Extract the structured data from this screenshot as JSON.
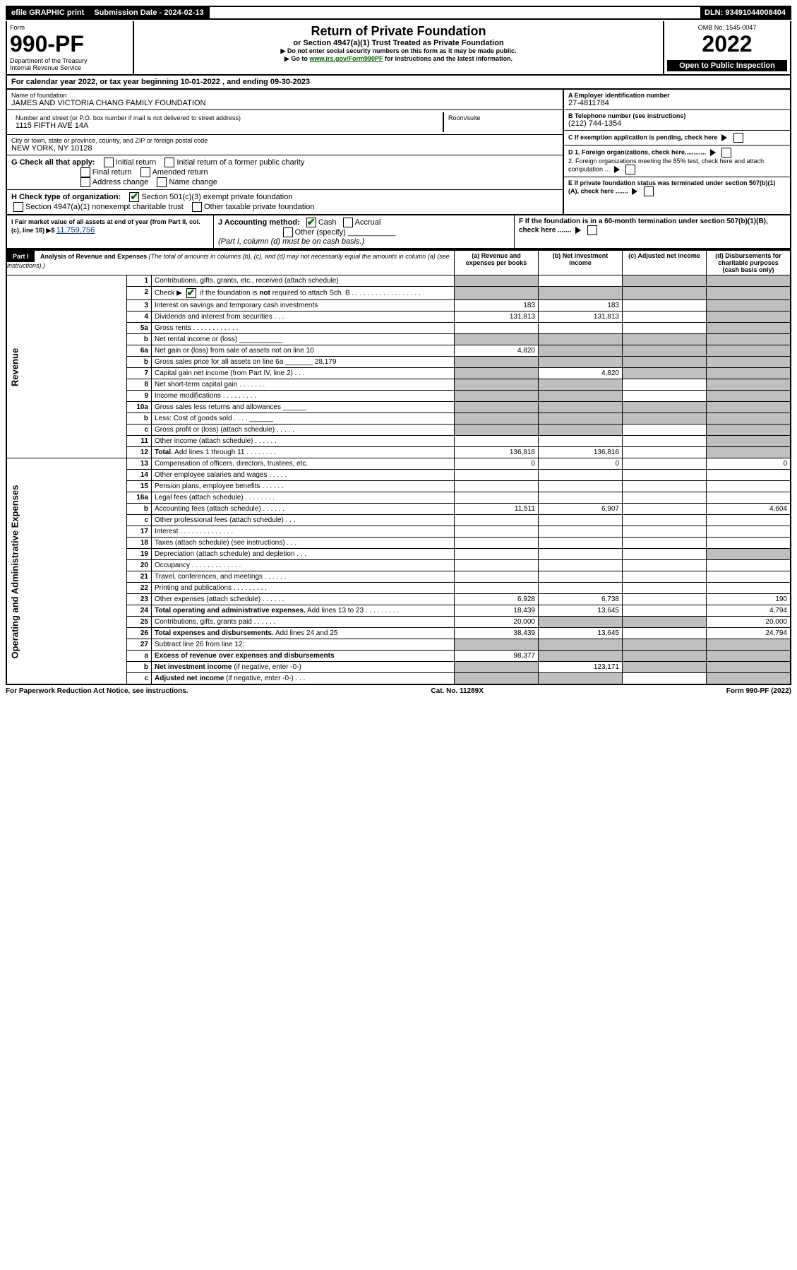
{
  "topbar": {
    "efile": "efile GRAPHIC print",
    "submission_label": "Submission Date - 2024-02-13",
    "dln": "DLN: 93491044008404"
  },
  "header": {
    "form_word": "Form",
    "form_num": "990-PF",
    "dept": "Department of the Treasury",
    "irs": "Internal Revenue Service",
    "title": "Return of Private Foundation",
    "subtitle": "or Section 4947(a)(1) Trust Treated as Private Foundation",
    "note1": "▶ Do not enter social security numbers on this form as it may be made public.",
    "note2_pre": "▶ Go to ",
    "note2_link": "www.irs.gov/Form990PF",
    "note2_post": " for instructions and the latest information.",
    "omb": "OMB No. 1545-0047",
    "year": "2022",
    "inspection": "Open to Public Inspection"
  },
  "calyear": {
    "text_pre": "For calendar year 2022, or tax year beginning ",
    "begin": "10-01-2022",
    "mid": " , and ending ",
    "end": "09-30-2023"
  },
  "foundation": {
    "name_label": "Name of foundation",
    "name": "JAMES AND VICTORIA CHANG FAMILY FOUNDATION",
    "addr_label": "Number and street (or P.O. box number if mail is not delivered to street address)",
    "addr": "1115 FIFTH AVE 14A",
    "room_label": "Room/suite",
    "city_label": "City or town, state or province, country, and ZIP or foreign postal code",
    "city": "NEW YORK, NY  10128"
  },
  "rightinfo": {
    "a_label": "A Employer identification number",
    "a_val": "27-4811784",
    "b_label": "B Telephone number (see instructions)",
    "b_val": "(212) 744-1354",
    "c_label": "C If exemption application is pending, check here",
    "d1": "D 1. Foreign organizations, check here............",
    "d2": "2. Foreign organizations meeting the 85% test, check here and attach computation ...",
    "e": "E  If private foundation status was terminated under section 507(b)(1)(A), check here .......",
    "f": "F  If the foundation is in a 60-month termination under section 507(b)(1)(B), check here .......",
    "i_label": "I Fair market value of all assets at end of year (from Part II, col. (c), line 16) ▶$ ",
    "i_val": "11,759,756",
    "j_label": "J Accounting method:",
    "j_cash": "Cash",
    "j_accrual": "Accrual",
    "j_other": "Other (specify)",
    "j_note": "(Part I, column (d) must be on cash basis.)"
  },
  "checks": {
    "g_label": "G Check all that apply:",
    "g1": "Initial return",
    "g2": "Initial return of a former public charity",
    "g3": "Final return",
    "g4": "Amended return",
    "g5": "Address change",
    "g6": "Name change",
    "h_label": "H Check type of organization:",
    "h1": "Section 501(c)(3) exempt private foundation",
    "h2": "Section 4947(a)(1) nonexempt charitable trust",
    "h3": "Other taxable private foundation"
  },
  "part1": {
    "label": "Part I",
    "title": "Analysis of Revenue and Expenses",
    "title_note": "(The total of amounts in columns (b), (c), and (d) may not necessarily equal the amounts in column (a) (see instructions).)",
    "col_a": "(a) Revenue and expenses per books",
    "col_b": "(b) Net investment income",
    "col_c": "(c) Adjusted net income",
    "col_d": "(d) Disbursements for charitable purposes (cash basis only)"
  },
  "sections": {
    "revenue": "Revenue",
    "expenses": "Operating and Administrative Expenses"
  },
  "rows": [
    {
      "n": "1",
      "d": "Contributions, gifts, grants, etc., received (attach schedule)",
      "a": "",
      "b": "",
      "c": "",
      "dd": "",
      "ga": true,
      "gc": true,
      "gd": true
    },
    {
      "n": "2",
      "d": "Check ▶ ☑ if the foundation is <b>not</b> required to attach Sch. B   . . . . . . . . . . . . . . . . . .",
      "a": "",
      "b": "",
      "c": "",
      "dd": "",
      "ga": true,
      "gb": true,
      "gc": true,
      "gd": true,
      "check": true
    },
    {
      "n": "3",
      "d": "Interest on savings and temporary cash investments",
      "a": "183",
      "b": "183",
      "c": "",
      "dd": "",
      "gd": true
    },
    {
      "n": "4",
      "d": "Dividends and interest from securities   .  .  .",
      "a": "131,813",
      "b": "131,813",
      "c": "",
      "dd": "",
      "gd": true
    },
    {
      "n": "5a",
      "d": "Gross rents   .  .  .  .  .  .  .  .  .  .  .  .",
      "a": "",
      "b": "",
      "c": "",
      "dd": "",
      "gd": true
    },
    {
      "n": "b",
      "d": "Net rental income or (loss) ___________",
      "a": "",
      "b": "",
      "c": "",
      "dd": "",
      "ga": true,
      "gb": true,
      "gc": true,
      "gd": true
    },
    {
      "n": "6a",
      "d": "Net gain or (loss) from sale of assets not on line 10",
      "a": "4,820",
      "b": "",
      "c": "",
      "dd": "",
      "gb": true,
      "gc": true,
      "gd": true
    },
    {
      "n": "b",
      "d": "Gross sales price for all assets on line 6a _______ 28,179",
      "a": "",
      "b": "",
      "c": "",
      "dd": "",
      "ga": true,
      "gb": true,
      "gc": true,
      "gd": true
    },
    {
      "n": "7",
      "d": "Capital gain net income (from Part IV, line 2)  .  .  .",
      "a": "",
      "b": "4,820",
      "c": "",
      "dd": "",
      "ga": true,
      "gc": true,
      "gd": true
    },
    {
      "n": "8",
      "d": "Net short-term capital gain  .  .  .  .  .  .  .",
      "a": "",
      "b": "",
      "c": "",
      "dd": "",
      "ga": true,
      "gb": true,
      "gd": true
    },
    {
      "n": "9",
      "d": "Income modifications  .  .  .  .  .  .  .  .  .",
      "a": "",
      "b": "",
      "c": "",
      "dd": "",
      "ga": true,
      "gb": true,
      "gd": true
    },
    {
      "n": "10a",
      "d": "Gross sales less returns and allowances ______",
      "a": "",
      "b": "",
      "c": "",
      "dd": "",
      "ga": true,
      "gb": true,
      "gc": true,
      "gd": true
    },
    {
      "n": "b",
      "d": "Less: Cost of goods sold   .  .  .  . ______",
      "a": "",
      "b": "",
      "c": "",
      "dd": "",
      "ga": true,
      "gb": true,
      "gc": true,
      "gd": true
    },
    {
      "n": "c",
      "d": "Gross profit or (loss) (attach schedule)   .  .  .  .  .",
      "a": "",
      "b": "",
      "c": "",
      "dd": "",
      "ga": true,
      "gb": true,
      "gd": true
    },
    {
      "n": "11",
      "d": "Other income (attach schedule)   .  .  .  .  .  .",
      "a": "",
      "b": "",
      "c": "",
      "dd": "",
      "gd": true
    },
    {
      "n": "12",
      "d": "<b>Total.</b> Add lines 1 through 11   .  .  .  .  .  .  .  .",
      "a": "136,816",
      "b": "136,816",
      "c": "",
      "dd": "",
      "gd": true
    },
    {
      "n": "13",
      "d": "Compensation of officers, directors, trustees, etc.",
      "a": "0",
      "b": "0",
      "c": "",
      "dd": "0",
      "sec": "exp"
    },
    {
      "n": "14",
      "d": "Other employee salaries and wages   .  .  .  .  .",
      "a": "",
      "b": "",
      "c": "",
      "dd": ""
    },
    {
      "n": "15",
      "d": "Pension plans, employee benefits  .  .  .  .  .  .",
      "a": "",
      "b": "",
      "c": "",
      "dd": ""
    },
    {
      "n": "16a",
      "d": "Legal fees (attach schedule)  .  .  .  .  .  .  .  .",
      "a": "",
      "b": "",
      "c": "",
      "dd": ""
    },
    {
      "n": "b",
      "d": "Accounting fees (attach schedule)  .  .  .  .  .  .",
      "a": "11,511",
      "b": "6,907",
      "c": "",
      "dd": "4,604"
    },
    {
      "n": "c",
      "d": "Other professional fees (attach schedule)   .  .  .",
      "a": "",
      "b": "",
      "c": "",
      "dd": ""
    },
    {
      "n": "17",
      "d": "Interest  .  .  .  .  .  .  .  .  .  .  .  .  .  .",
      "a": "",
      "b": "",
      "c": "",
      "dd": ""
    },
    {
      "n": "18",
      "d": "Taxes (attach schedule) (see instructions)   .  .  .",
      "a": "",
      "b": "",
      "c": "",
      "dd": ""
    },
    {
      "n": "19",
      "d": "Depreciation (attach schedule) and depletion   .  .  .",
      "a": "",
      "b": "",
      "c": "",
      "dd": "",
      "gd": true
    },
    {
      "n": "20",
      "d": "Occupancy  .  .  .  .  .  .  .  .  .  .  .  .  .",
      "a": "",
      "b": "",
      "c": "",
      "dd": ""
    },
    {
      "n": "21",
      "d": "Travel, conferences, and meetings  .  .  .  .  .  .",
      "a": "",
      "b": "",
      "c": "",
      "dd": ""
    },
    {
      "n": "22",
      "d": "Printing and publications  .  .  .  .  .  .  .  .  .",
      "a": "",
      "b": "",
      "c": "",
      "dd": ""
    },
    {
      "n": "23",
      "d": "Other expenses (attach schedule)  .  .  .  .  .  .",
      "a": "6,928",
      "b": "6,738",
      "c": "",
      "dd": "190"
    },
    {
      "n": "24",
      "d": "<b>Total operating and administrative expenses.</b> Add lines 13 to 23  .  .  .  .  .  .  .  .  .",
      "a": "18,439",
      "b": "13,645",
      "c": "",
      "dd": "4,794"
    },
    {
      "n": "25",
      "d": "Contributions, gifts, grants paid   .  .  .  .  .  .",
      "a": "20,000",
      "b": "",
      "c": "",
      "dd": "20,000",
      "gb": true,
      "gc": true
    },
    {
      "n": "26",
      "d": "<b>Total expenses and disbursements.</b> Add lines 24 and 25",
      "a": "38,439",
      "b": "13,645",
      "c": "",
      "dd": "24,794"
    },
    {
      "n": "27",
      "d": "Subtract line 26 from line 12:",
      "a": "",
      "b": "",
      "c": "",
      "dd": "",
      "ga": true,
      "gb": true,
      "gc": true,
      "gd": true
    },
    {
      "n": "a",
      "d": "<b>Excess of revenue over expenses and disbursements</b>",
      "a": "98,377",
      "b": "",
      "c": "",
      "dd": "",
      "gb": true,
      "gc": true,
      "gd": true
    },
    {
      "n": "b",
      "d": "<b>Net investment income</b> (if negative, enter -0-)",
      "a": "",
      "b": "123,171",
      "c": "",
      "dd": "",
      "ga": true,
      "gc": true,
      "gd": true
    },
    {
      "n": "c",
      "d": "<b>Adjusted net income</b> (if negative, enter -0-)   .  .  .",
      "a": "",
      "b": "",
      "c": "",
      "dd": "",
      "ga": true,
      "gb": true,
      "gd": true
    }
  ],
  "footer": {
    "left": "For Paperwork Reduction Act Notice, see instructions.",
    "mid": "Cat. No. 11289X",
    "right": "Form 990-PF (2022)"
  }
}
